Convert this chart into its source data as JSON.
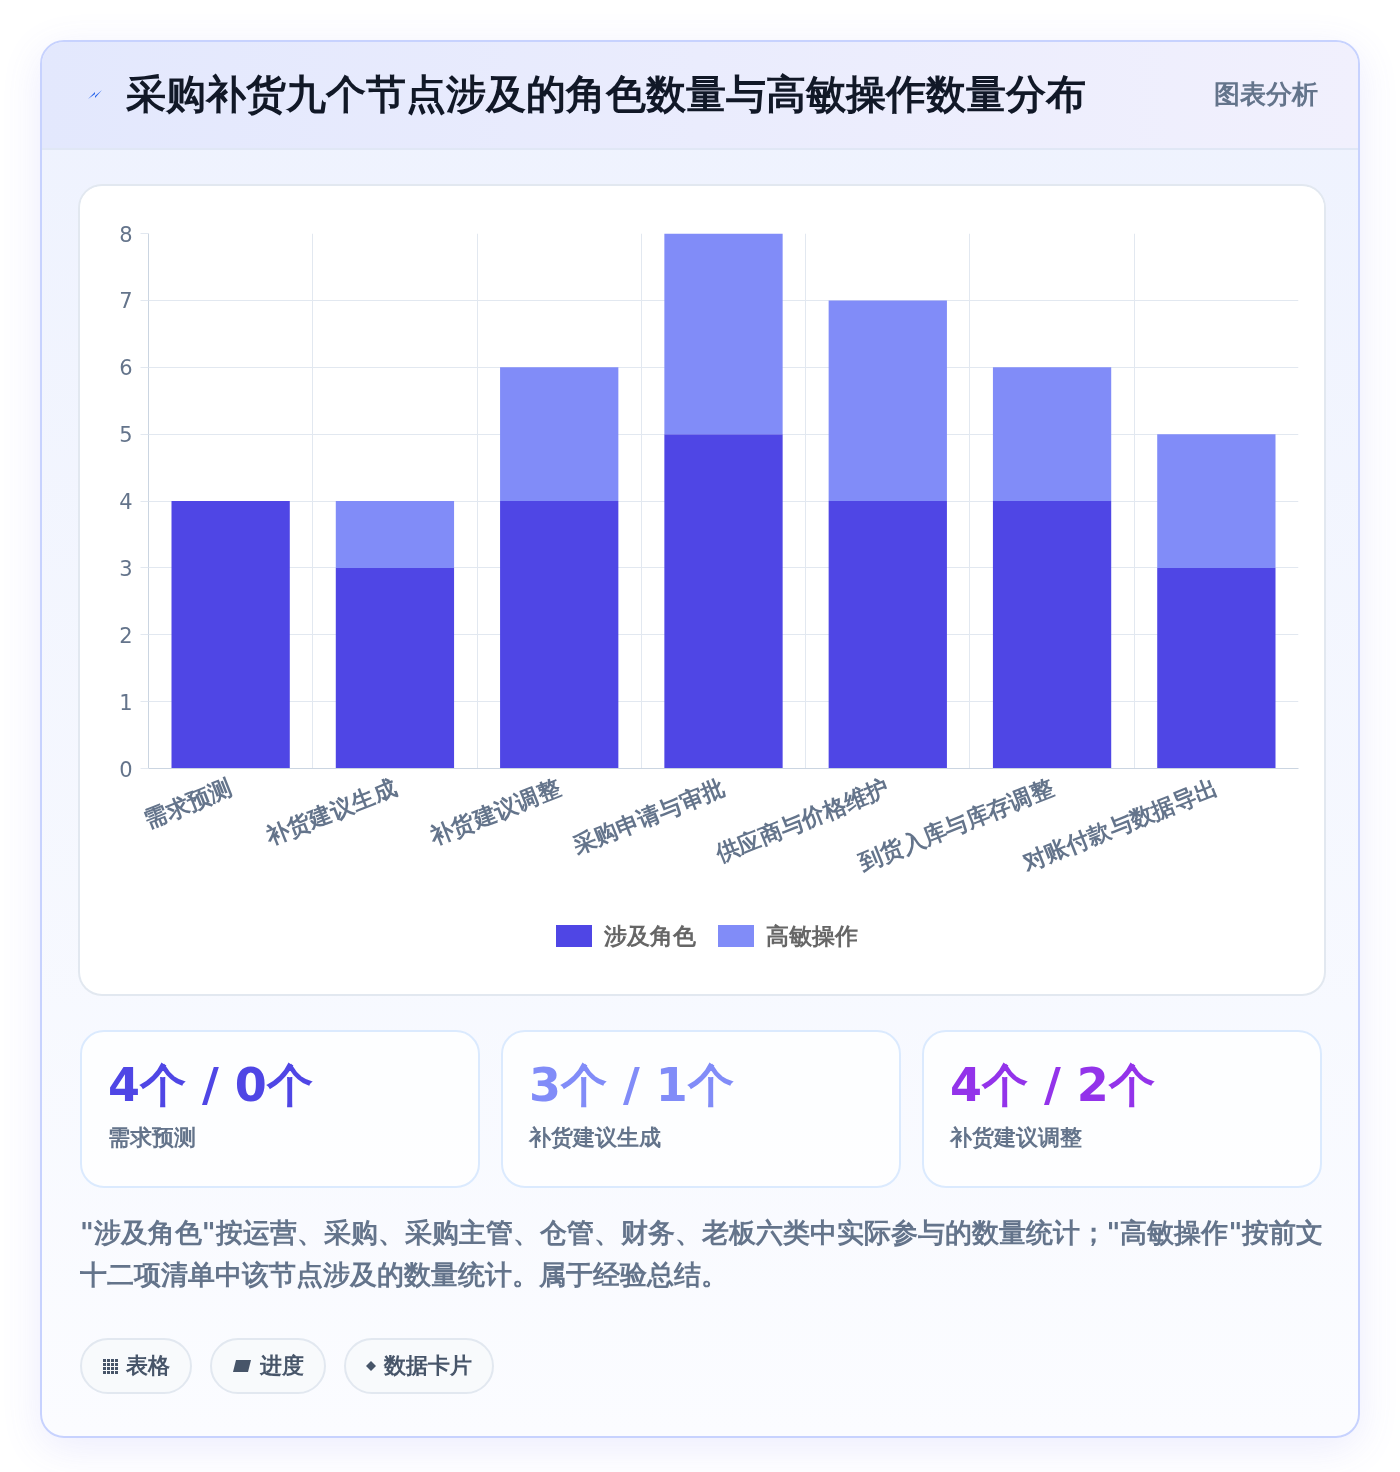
{
  "chart_data": {
    "type": "bar",
    "title": "采购补货九个节点涉及的角色数量与高敏操作数量分布",
    "categories": [
      "需求预测",
      "补货建议生成",
      "补货建议调整",
      "采购申请与审批",
      "供应商与价格维护",
      "到货入库与库存调整",
      "对账付款与数据导出"
    ],
    "series": [
      {
        "name": "涉及角色",
        "color": "#4f46e5",
        "values": [
          4,
          3,
          4,
          5,
          4,
          4,
          3
        ]
      },
      {
        "name": "高敏操作",
        "color": "#818cf8",
        "values": [
          0,
          1,
          2,
          3,
          3,
          2,
          2
        ]
      }
    ],
    "stacked": true,
    "ylim": [
      0,
      8
    ],
    "yticks": [
      0,
      1,
      2,
      3,
      4,
      5,
      6,
      7,
      8
    ],
    "grid": true,
    "legend": "bottom",
    "annotations": [
      "图表分析",
      "4个 / 0个",
      "需求预测",
      "3个 / 1个",
      "补货建议生成",
      "4个 / 2个",
      "补货建议调整",
      "\"涉及角色\"按运营、采购、采购主管、仓管、财务、老板六类中实际参与的数量统计；\"高敏操作\"按前文十二项清单中该节点涉及的数量统计。属于经验总结。",
      "表格",
      "进度",
      "数据卡片"
    ]
  }
}
